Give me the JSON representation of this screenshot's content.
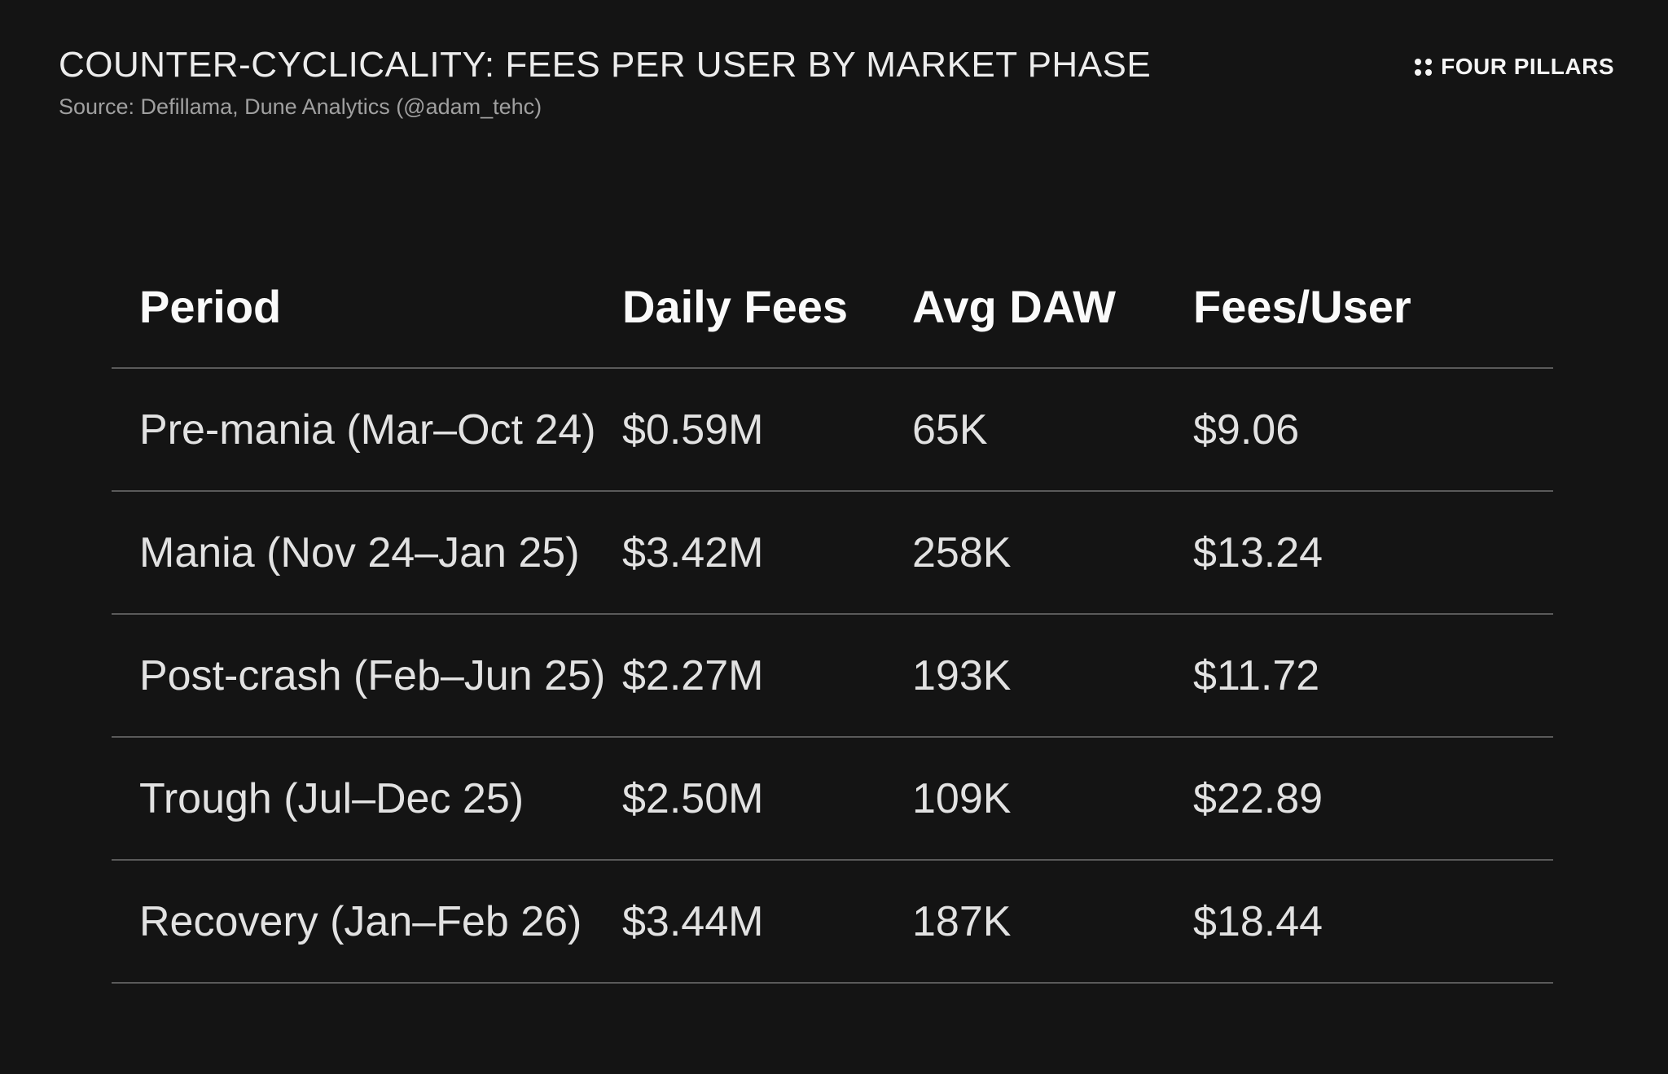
{
  "header": {
    "title": "COUNTER-CYCLICALITY: FEES PER USER BY MARKET PHASE",
    "source": "Source: Defillama, Dune Analytics (@adam_tehc)",
    "brand": "FOUR PILLARS"
  },
  "colors": {
    "background": "#141414",
    "divider": "#5a5a5a",
    "title_text": "#ececec",
    "source_text": "#a0a0a0",
    "header_text": "#fafafa",
    "cell_text": "#e2e2e2"
  },
  "table": {
    "headers": [
      "Period",
      "Daily Fees",
      "Avg DAW",
      "Fees/User"
    ],
    "rows": [
      {
        "period": "Pre-mania (Mar–Oct 24)",
        "daily_fees": "$0.59M",
        "avg_daw": "65K",
        "fees_per_user": "$9.06"
      },
      {
        "period": "Mania (Nov 24–Jan 25)",
        "daily_fees": "$3.42M",
        "avg_daw": "258K",
        "fees_per_user": "$13.24"
      },
      {
        "period": "Post-crash (Feb–Jun 25)",
        "daily_fees": "$2.27M",
        "avg_daw": "193K",
        "fees_per_user": "$11.72"
      },
      {
        "period": "Trough (Jul–Dec 25)",
        "daily_fees": "$2.50M",
        "avg_daw": "109K",
        "fees_per_user": "$22.89"
      },
      {
        "period": "Recovery (Jan–Feb 26)",
        "daily_fees": "$3.44M",
        "avg_daw": "187K",
        "fees_per_user": "$18.44"
      }
    ]
  },
  "chart_data": {
    "type": "table",
    "title": "COUNTER-CYCLICALITY: FEES PER USER BY MARKET PHASE",
    "source": "Source: Defillama, Dune Analytics (@adam_tehc)",
    "columns": [
      "Period",
      "Daily Fees",
      "Avg DAW",
      "Fees/User"
    ],
    "rows": [
      [
        "Pre-mania (Mar–Oct 24)",
        "$0.59M",
        "65K",
        "$9.06"
      ],
      [
        "Mania (Nov 24–Jan 25)",
        "$3.42M",
        "258K",
        "$13.24"
      ],
      [
        "Post-crash (Feb–Jun 25)",
        "$2.27M",
        "193K",
        "$11.72"
      ],
      [
        "Trough (Jul–Dec 25)",
        "$2.50M",
        "109K",
        "$22.89"
      ],
      [
        "Recovery (Jan–Feb 26)",
        "$3.44M",
        "187K",
        "$18.44"
      ]
    ],
    "numeric": {
      "daily_fees_millions_usd": [
        0.59,
        3.42,
        2.27,
        2.5,
        3.44
      ],
      "avg_daw_thousands": [
        65,
        258,
        193,
        109,
        187
      ],
      "fees_per_user_usd": [
        9.06,
        13.24,
        11.72,
        22.89,
        18.44
      ]
    }
  }
}
